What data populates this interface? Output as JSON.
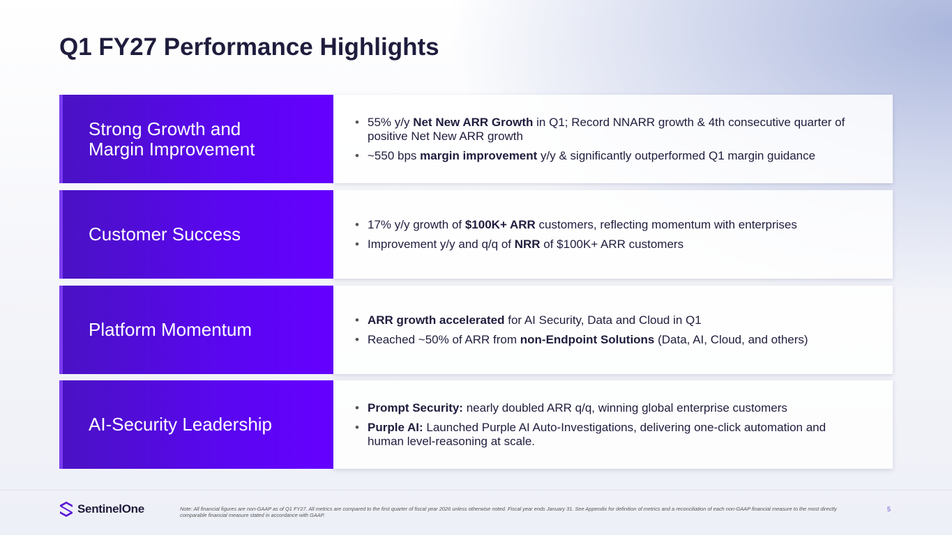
{
  "title": "Q1 FY27 Performance Highlights",
  "rows": [
    {
      "heading": "Strong Growth and Margin Improvement",
      "bullets": [
        [
          {
            "text": "55% y/y "
          },
          {
            "text": "Net New ARR Growth",
            "bold": true
          },
          {
            "text": " in Q1; Record NNARR growth & 4th consecutive quarter of positive Net New ARR growth"
          }
        ],
        [
          {
            "text": "~550 bps "
          },
          {
            "text": "margin improvement",
            "bold": true
          },
          {
            "text": " y/y & significantly outperformed Q1 margin guidance"
          }
        ]
      ]
    },
    {
      "heading": "Customer Success",
      "bullets": [
        [
          {
            "text": "17% y/y growth of "
          },
          {
            "text": "$100K+ ARR",
            "bold": true
          },
          {
            "text": " customers, reflecting momentum with enterprises"
          }
        ],
        [
          {
            "text": "Improvement y/y and q/q of "
          },
          {
            "text": "NRR",
            "bold": true
          },
          {
            "text": " of $100K+ ARR customers"
          }
        ]
      ]
    },
    {
      "heading": "Platform Momentum",
      "bullets": [
        [
          {
            "text": "ARR growth accelerated",
            "bold": true
          },
          {
            "text": " for AI Security, Data and Cloud in Q1"
          }
        ],
        [
          {
            "text": "Reached ~50% of ARR from "
          },
          {
            "text": "non-Endpoint Solutions",
            "bold": true
          },
          {
            "text": " (Data, AI, Cloud, and others)"
          }
        ]
      ]
    },
    {
      "heading": "AI-Security Leadership",
      "bullets": [
        [
          {
            "text": "Prompt Security:",
            "bold": true
          },
          {
            "text": " nearly doubled ARR q/q, winning global enterprise customers"
          }
        ],
        [
          {
            "text": "Purple AI:",
            "bold": true
          },
          {
            "text": " Launched Purple AI Auto-Investigations, delivering one-click automation and human level-reasoning at scale."
          }
        ]
      ]
    }
  ],
  "footer": {
    "logo": "SentinelOne",
    "note": "Note: All financial figures are non-GAAP as of Q1 FY27. All metrics are compared to the first quarter of fiscal year 2026 unless otherwise noted. Fiscal year ends January 31. See Appendix for definition of metrics and a reconciliation of each non-GAAP financial measure to the most directly comparable financial measure stated in accordance with GAAP.",
    "page_number": "5"
  }
}
